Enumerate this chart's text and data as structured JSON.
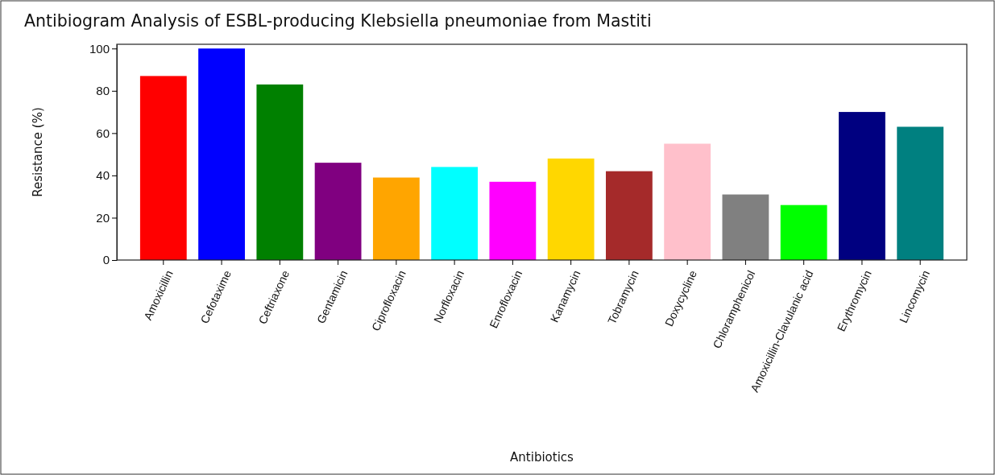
{
  "chart_data": {
    "type": "bar",
    "title": "Antibiogram Analysis of ESBL-producing Klebsiella pneumoniae from Mastiti",
    "xlabel": "Antibiotics",
    "ylabel": "Resistance (%)",
    "categories": [
      "Amoxicillin",
      "Cefotaxime",
      "Ceftriaxone",
      "Gentamicin",
      "Ciprofloxacin",
      "Norfloxacin",
      "Enrofloxacin",
      "Kanamycin",
      "Tobramycin",
      "Doxycycline",
      "Chloramphenicol",
      "Amoxicillin-Clavulanic acid",
      "Erythromycin",
      "Lincomycin"
    ],
    "values": [
      87,
      100,
      83,
      46,
      39,
      44,
      37,
      48,
      42,
      55,
      31,
      26,
      70,
      63
    ],
    "colors": [
      "#ff0000",
      "#0000ff",
      "#008000",
      "#800080",
      "#ffa500",
      "#00ffff",
      "#ff00ff",
      "#ffd700",
      "#a52a2a",
      "#ffc0cb",
      "#808080",
      "#00ff00",
      "#000080",
      "#008080"
    ],
    "ylim": [
      0,
      102
    ],
    "yticks": [
      0,
      20,
      40,
      60,
      80,
      100
    ]
  }
}
